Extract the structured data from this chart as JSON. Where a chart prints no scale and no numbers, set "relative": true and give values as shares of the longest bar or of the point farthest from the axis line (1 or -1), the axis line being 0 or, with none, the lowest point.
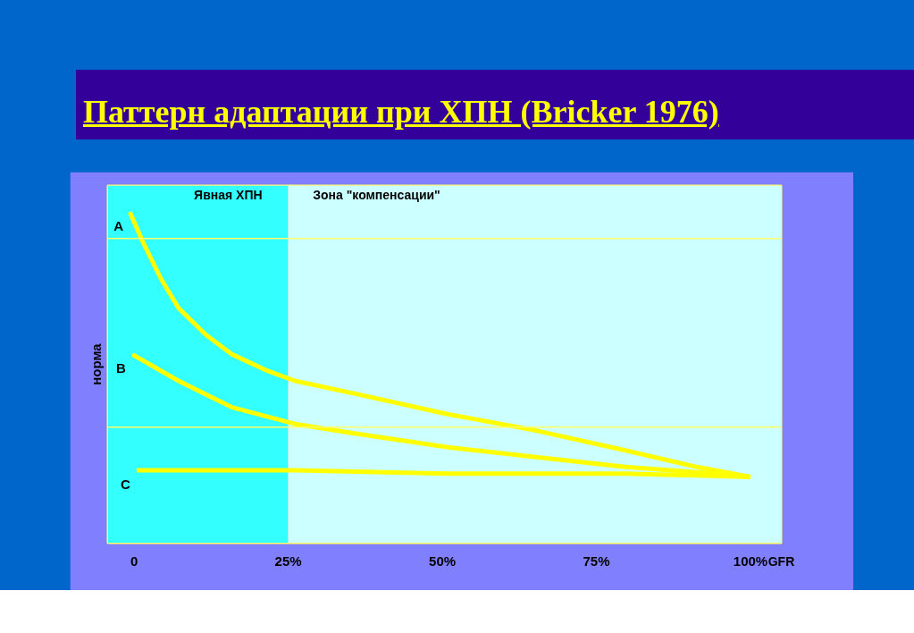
{
  "chart_data": {
    "type": "line",
    "title": "Паттерн адаптации при ХПН (Bricker  1976)",
    "xlabel": "GFR",
    "ylabel": "норма",
    "relative": true,
    "xlim": [
      -4.3,
      105
    ],
    "xticks": [
      0,
      {
        "value": 25,
        "label": "25%"
      },
      {
        "value": 50,
        "label": "50%"
      },
      {
        "value": 75,
        "label": "75%"
      },
      {
        "value": 100,
        "label": "100%"
      }
    ],
    "grid": false,
    "marker": "none",
    "line_style": "solid",
    "series": [
      {
        "name": "A",
        "color": "#ffff00",
        "x": [
          -0.7,
          1.4,
          4.3,
          7.2,
          11.6,
          15.9,
          21.7,
          26.1,
          36.2,
          50.7,
          65.2,
          79.7,
          91.3,
          100
        ],
        "values": [
          1,
          0.91,
          0.8,
          0.71,
          0.63,
          0.57,
          0.52,
          0.49,
          0.45,
          0.39,
          0.34,
          0.28,
          0.23,
          0.2
        ]
      },
      {
        "name": "B",
        "color": "#ffff00",
        "x": [
          -0.3,
          7.2,
          15.9,
          26.1,
          36.2,
          50.7,
          65.2,
          79.7,
          94.2,
          100
        ],
        "values": [
          0.57,
          0.49,
          0.41,
          0.36,
          0.33,
          0.29,
          0.26,
          0.23,
          0.21,
          0.2
        ]
      },
      {
        "name": "C",
        "color": "#ffff00",
        "x": [
          0.4,
          26.1,
          50.7,
          79.7,
          100
        ],
        "values": [
          0.22,
          0.22,
          0.21,
          0.21,
          0.2
        ]
      }
    ],
    "bands": [
      {
        "axis": "x",
        "from": -4.3,
        "to": 25,
        "label": "Явная ХПН",
        "color": "#33ffff"
      },
      {
        "axis": "x",
        "from": 25,
        "to": 105,
        "label": "Зона \"компенсации\"",
        "color": "#ccffff"
      }
    ],
    "ref_lines": [
      {
        "axis": "y",
        "value": 0.92,
        "color": "#ffff66"
      },
      {
        "axis": "y",
        "value": 0.35,
        "color": "#ffff66"
      }
    ]
  }
}
